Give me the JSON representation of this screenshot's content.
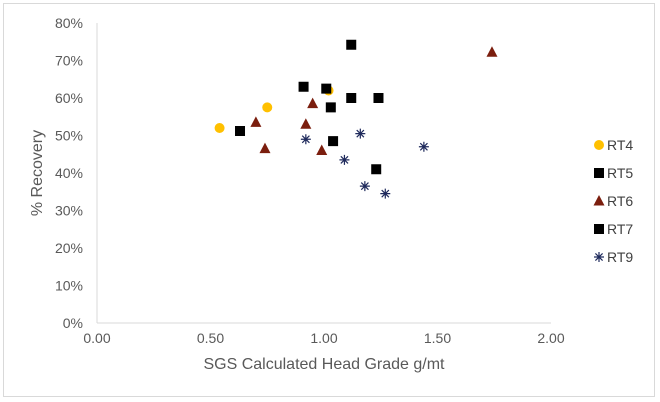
{
  "chart_data": {
    "type": "scatter",
    "title": "",
    "xlabel": "SGS Calculated Head Grade g/mt",
    "ylabel": "% Recovery",
    "xlim": [
      0,
      2
    ],
    "ylim": [
      0,
      0.8
    ],
    "x_ticks": [
      0,
      0.5,
      1.0,
      1.5,
      2.0
    ],
    "x_tick_labels": [
      "0.00",
      "0.50",
      "1.00",
      "1.50",
      "2.00"
    ],
    "y_ticks": [
      0,
      0.1,
      0.2,
      0.3,
      0.4,
      0.5,
      0.6,
      0.7,
      0.8
    ],
    "y_tick_labels": [
      "0%",
      "10%",
      "20%",
      "30%",
      "40%",
      "50%",
      "60%",
      "70%",
      "80%"
    ],
    "legend_position": "right",
    "grid": false,
    "series": [
      {
        "name": "RT4",
        "marker": "circle",
        "color": "#ffc000",
        "points": [
          [
            0.54,
            0.52
          ],
          [
            0.75,
            0.575
          ],
          [
            1.02,
            0.62
          ]
        ]
      },
      {
        "name": "RT5",
        "marker": "square",
        "color": "#000000",
        "points": [
          [
            0.91,
            0.63
          ],
          [
            1.01,
            0.625
          ],
          [
            1.03,
            0.575
          ],
          [
            1.12,
            0.6
          ],
          [
            1.24,
            0.6
          ],
          [
            1.12,
            0.742
          ]
        ]
      },
      {
        "name": "RT6",
        "marker": "triangle",
        "color": "#7b1e0e",
        "points": [
          [
            0.7,
            0.535
          ],
          [
            0.74,
            0.465
          ],
          [
            0.92,
            0.53
          ],
          [
            0.95,
            0.585
          ],
          [
            0.99,
            0.46
          ],
          [
            1.74,
            0.722
          ]
        ]
      },
      {
        "name": "RT7",
        "marker": "square",
        "color": "#000000",
        "points": [
          [
            0.63,
            0.512
          ],
          [
            1.04,
            0.485
          ],
          [
            1.23,
            0.41
          ]
        ]
      },
      {
        "name": "RT9",
        "marker": "star",
        "color": "#1f2a5c",
        "points": [
          [
            0.92,
            0.49
          ],
          [
            1.09,
            0.435
          ],
          [
            1.16,
            0.505
          ],
          [
            1.18,
            0.365
          ],
          [
            1.27,
            0.345
          ],
          [
            1.44,
            0.47
          ]
        ]
      }
    ]
  }
}
